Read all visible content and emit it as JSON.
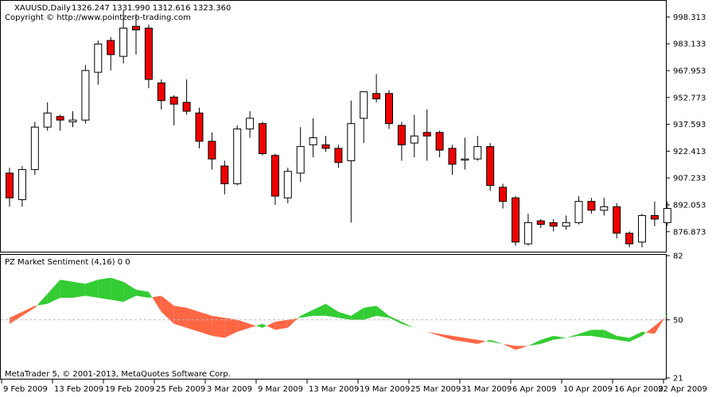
{
  "header": {
    "symbol": "XAUUSD,Daily",
    "ohlc": "1326.247 1331.990 1312.616 1323.360",
    "copyright": "Copyright © http://www.pointzero-trading.com"
  },
  "indicator": {
    "title": "PZ Market Sentiment (4,16) 0 0",
    "footer": "MetaTrader 5, © 2001-2013, MetaQuotes Software Corp."
  },
  "colors": {
    "bull_fill": "#ffffff",
    "bear_fill": "#ee0000",
    "candle_stroke": "#000000",
    "sentiment_up": "#33cc33",
    "sentiment_down": "#ff6644",
    "level_line": "#bbbbbb"
  },
  "chart_data": [
    {
      "type": "candlestick",
      "ylim": [
        866.0,
        1007.0
      ],
      "y_ticks": [
        "998.313",
        "983.133",
        "967.953",
        "952.773",
        "937.593",
        "922.413",
        "907.233",
        "892.053",
        "876.873"
      ],
      "x_tick_labels": [
        "9 Feb 2009",
        "13 Feb 2009",
        "19 Feb 2009",
        "25 Feb 2009",
        "3 Mar 2009",
        "9 Mar 2009",
        "13 Mar 2009",
        "19 Mar 2009",
        "25 Mar 2009",
        "31 Mar 2009",
        "6 Apr 2009",
        "10 Apr 2009",
        "16 Apr 2009",
        "22 Apr 2009"
      ],
      "candles": [
        {
          "o": 910.0,
          "h": 913.0,
          "l": 891.0,
          "c": 896.0
        },
        {
          "o": 895.0,
          "h": 914.0,
          "l": 891.0,
          "c": 912.0
        },
        {
          "o": 912.0,
          "h": 939.0,
          "l": 909.0,
          "c": 936.0
        },
        {
          "o": 936.0,
          "h": 950.0,
          "l": 934.0,
          "c": 944.0
        },
        {
          "o": 942.0,
          "h": 943.0,
          "l": 934.0,
          "c": 940.0
        },
        {
          "o": 939.0,
          "h": 945.0,
          "l": 936.0,
          "c": 940.0
        },
        {
          "o": 940.0,
          "h": 971.0,
          "l": 938.0,
          "c": 968.0
        },
        {
          "o": 967.0,
          "h": 985.0,
          "l": 960.0,
          "c": 983.0
        },
        {
          "o": 985.0,
          "h": 987.0,
          "l": 968.0,
          "c": 977.0
        },
        {
          "o": 976.0,
          "h": 1002.0,
          "l": 972.0,
          "c": 992.0
        },
        {
          "o": 993.0,
          "h": 1000.0,
          "l": 977.0,
          "c": 991.0
        },
        {
          "o": 992.0,
          "h": 994.0,
          "l": 958.0,
          "c": 963.0
        },
        {
          "o": 961.0,
          "h": 963.0,
          "l": 946.0,
          "c": 951.0
        },
        {
          "o": 953.0,
          "h": 954.0,
          "l": 937.0,
          "c": 949.0
        },
        {
          "o": 950.0,
          "h": 963.0,
          "l": 943.0,
          "c": 945.0
        },
        {
          "o": 944.0,
          "h": 947.0,
          "l": 924.0,
          "c": 928.0
        },
        {
          "o": 928.0,
          "h": 933.0,
          "l": 912.0,
          "c": 918.0
        },
        {
          "o": 914.0,
          "h": 917.0,
          "l": 898.0,
          "c": 904.0
        },
        {
          "o": 904.0,
          "h": 937.0,
          "l": 903.0,
          "c": 935.0
        },
        {
          "o": 935.0,
          "h": 945.0,
          "l": 930.0,
          "c": 941.0
        },
        {
          "o": 938.0,
          "h": 939.0,
          "l": 920.0,
          "c": 921.0
        },
        {
          "o": 920.0,
          "h": 921.0,
          "l": 892.0,
          "c": 897.0
        },
        {
          "o": 896.0,
          "h": 913.0,
          "l": 893.0,
          "c": 911.0
        },
        {
          "o": 910.0,
          "h": 936.0,
          "l": 905.0,
          "c": 925.0
        },
        {
          "o": 926.0,
          "h": 941.0,
          "l": 919.0,
          "c": 930.0
        },
        {
          "o": 926.0,
          "h": 931.0,
          "l": 922.0,
          "c": 924.0
        },
        {
          "o": 924.0,
          "h": 926.0,
          "l": 913.0,
          "c": 916.0
        },
        {
          "o": 917.0,
          "h": 951.0,
          "l": 882.0,
          "c": 938.0
        },
        {
          "o": 941.0,
          "h": 956.0,
          "l": 927.0,
          "c": 956.0
        },
        {
          "o": 955.0,
          "h": 966.0,
          "l": 950.0,
          "c": 952.0
        },
        {
          "o": 955.0,
          "h": 957.0,
          "l": 935.0,
          "c": 938.0
        },
        {
          "o": 937.0,
          "h": 939.0,
          "l": 917.0,
          "c": 926.0
        },
        {
          "o": 927.0,
          "h": 943.0,
          "l": 919.0,
          "c": 931.0
        },
        {
          "o": 933.0,
          "h": 946.0,
          "l": 917.0,
          "c": 931.0
        },
        {
          "o": 933.0,
          "h": 934.0,
          "l": 919.0,
          "c": 923.0
        },
        {
          "o": 924.0,
          "h": 926.0,
          "l": 909.0,
          "c": 915.0
        },
        {
          "o": 918.0,
          "h": 930.0,
          "l": 912.0,
          "c": 918.0
        },
        {
          "o": 918.0,
          "h": 931.0,
          "l": 917.0,
          "c": 925.0
        },
        {
          "o": 925.0,
          "h": 927.0,
          "l": 900.0,
          "c": 903.0
        },
        {
          "o": 902.0,
          "h": 904.0,
          "l": 890.0,
          "c": 894.0
        },
        {
          "o": 896.0,
          "h": 897.0,
          "l": 869.0,
          "c": 871.0
        },
        {
          "o": 870.0,
          "h": 887.0,
          "l": 869.0,
          "c": 882.0
        },
        {
          "o": 883.0,
          "h": 884.0,
          "l": 879.0,
          "c": 881.0
        },
        {
          "o": 882.0,
          "h": 884.0,
          "l": 877.0,
          "c": 880.0
        },
        {
          "o": 880.0,
          "h": 886.0,
          "l": 878.0,
          "c": 882.0
        },
        {
          "o": 882.0,
          "h": 897.0,
          "l": 881.0,
          "c": 894.0
        },
        {
          "o": 894.0,
          "h": 896.0,
          "l": 887.0,
          "c": 889.0
        },
        {
          "o": 889.0,
          "h": 896.0,
          "l": 886.0,
          "c": 891.0
        },
        {
          "o": 891.0,
          "h": 893.0,
          "l": 873.0,
          "c": 876.0
        },
        {
          "o": 876.0,
          "h": 877.0,
          "l": 868.0,
          "c": 870.0
        },
        {
          "o": 871.0,
          "h": 887.0,
          "l": 868.0,
          "c": 886.0
        },
        {
          "o": 886.0,
          "h": 894.0,
          "l": 880.0,
          "c": 884.0
        },
        {
          "o": 882.0,
          "h": 894.0,
          "l": 880.0,
          "c": 890.0
        }
      ]
    },
    {
      "type": "area",
      "ylim": [
        21,
        82
      ],
      "y_ticks": [
        "82",
        "50",
        "21"
      ],
      "level": 50,
      "series": [
        {
          "name": "Bulls",
          "values": [
            48,
            52,
            56,
            63,
            70,
            69,
            68,
            70,
            71,
            69,
            65,
            64,
            54,
            48,
            46,
            44,
            42,
            41,
            44,
            46,
            48,
            45,
            46,
            52,
            55,
            58,
            54,
            52,
            56,
            57,
            52,
            49,
            46,
            44,
            42,
            40,
            39,
            38,
            40,
            38,
            35,
            37,
            40,
            42,
            41,
            43,
            45,
            45,
            42,
            41,
            44,
            43,
            53
          ]
        },
        {
          "name": "Bears",
          "values": [
            51,
            54,
            57,
            58,
            61,
            61,
            62,
            61,
            60,
            59,
            62,
            61,
            62,
            57,
            56,
            54,
            52,
            51,
            50,
            48,
            46,
            49,
            50,
            51,
            52,
            52,
            51,
            50,
            50,
            52,
            51,
            48,
            46,
            44,
            43,
            42,
            41,
            40,
            39,
            38,
            37,
            37,
            38,
            40,
            41,
            42,
            42,
            41,
            40,
            39,
            42,
            47,
            52
          ]
        }
      ]
    }
  ]
}
